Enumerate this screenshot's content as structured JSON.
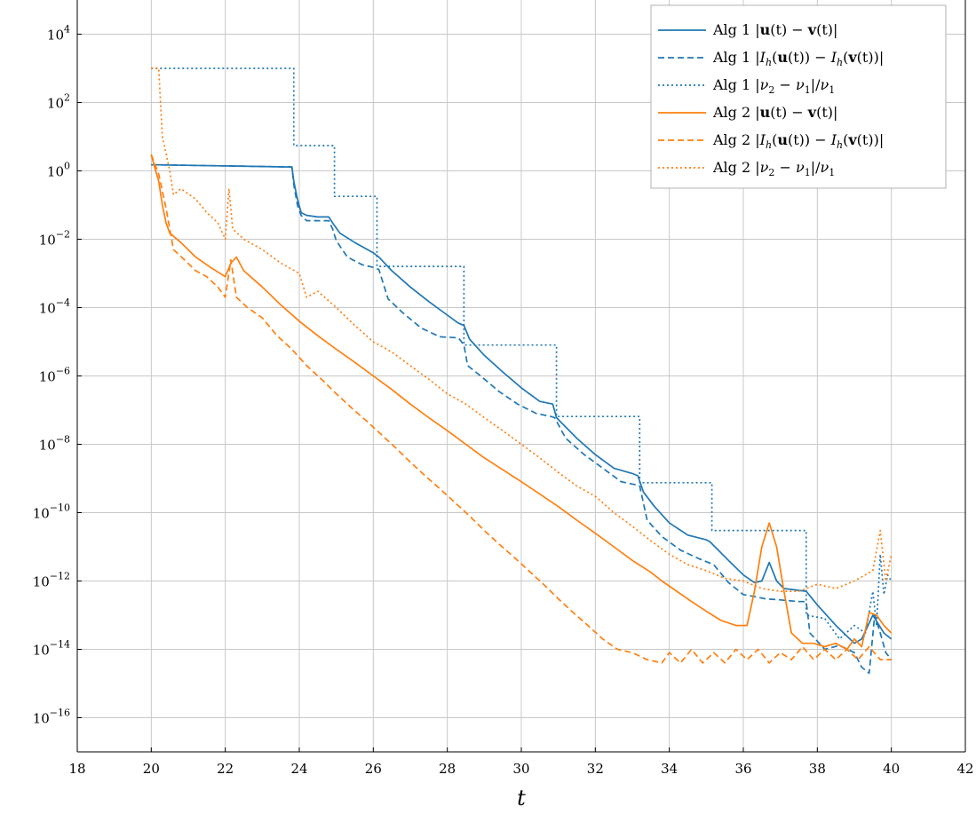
{
  "chart_data": {
    "type": "line",
    "xlabel": "t",
    "ylabel": "",
    "title": "",
    "xlim": [
      18,
      42
    ],
    "ylim": [
      1e-17,
      100000.0
    ],
    "yscale": "log",
    "grid": true,
    "legend_position": "top-right",
    "x_ticks": [
      18,
      20,
      22,
      24,
      26,
      28,
      30,
      32,
      34,
      36,
      38,
      40,
      42
    ],
    "y_ticks": [
      {
        "base": "10",
        "exp": "4",
        "value": 10000.0
      },
      {
        "base": "10",
        "exp": "2",
        "value": 100.0
      },
      {
        "base": "10",
        "exp": "0",
        "value": 1
      },
      {
        "base": "10",
        "exp": "−2",
        "value": 0.01
      },
      {
        "base": "10",
        "exp": "−4",
        "value": 0.0001
      },
      {
        "base": "10",
        "exp": "−6",
        "value": 1e-06
      },
      {
        "base": "10",
        "exp": "−8",
        "value": 1e-08
      },
      {
        "base": "10",
        "exp": "−10",
        "value": 1e-10
      },
      {
        "base": "10",
        "exp": "−12",
        "value": 1e-12
      },
      {
        "base": "10",
        "exp": "−14",
        "value": 1e-14
      },
      {
        "base": "10",
        "exp": "−16",
        "value": 1e-16
      }
    ],
    "colors": {
      "alg1": "#1f77b4",
      "alg2": "#ff7f0e"
    },
    "series": [
      {
        "name": "Alg 1 |u(t) − v(t)|",
        "legend": [
          "Alg 1 |",
          {
            "t": "u",
            "b": true
          },
          "(t) − ",
          {
            "t": "v",
            "b": true
          },
          "(t)|"
        ],
        "color": "alg1",
        "dash": "solid",
        "x": [
          20,
          20.2,
          23.8,
          23.85,
          23.95,
          24.05,
          24.2,
          24.5,
          24.8,
          24.9,
          25.1,
          25.5,
          26.0,
          26.15,
          26.5,
          27.0,
          27.5,
          28.0,
          28.3,
          28.45,
          28.6,
          29.0,
          29.5,
          30.0,
          30.5,
          30.85,
          30.95,
          31.5,
          32.0,
          32.5,
          33.0,
          33.15,
          33.3,
          33.6,
          34.0,
          34.5,
          35.0,
          35.1,
          35.6,
          36.0,
          36.3,
          36.5,
          36.7,
          36.9,
          37.1,
          37.4,
          37.7,
          38.0,
          38.5,
          39.0,
          39.2,
          39.5,
          39.8,
          40.0
        ],
        "y": [
          1.5,
          1.5,
          1.3,
          0.5,
          0.15,
          0.06,
          0.05,
          0.045,
          0.045,
          0.03,
          0.015,
          0.008,
          0.004,
          0.003,
          0.0012,
          0.0004,
          0.00015,
          6e-05,
          3.5e-05,
          3e-05,
          1.2e-05,
          4e-06,
          1.3e-06,
          4.5e-07,
          1.8e-07,
          1.5e-07,
          6e-08,
          1.5e-08,
          5e-09,
          2e-09,
          1.4e-09,
          1.2e-09,
          4e-10,
          1.5e-10,
          5e-11,
          2.2e-11,
          1.6e-11,
          1.4e-11,
          4e-12,
          1.5e-12,
          9e-13,
          1e-12,
          3.5e-12,
          1e-12,
          6e-13,
          5.5e-13,
          5e-13,
          2e-13,
          5e-14,
          1.5e-14,
          2e-14,
          1e-13,
          3e-14,
          2e-14
        ]
      },
      {
        "name": "Alg 1 |I_h(u(t)) − I_h(v(t))|",
        "legend": [
          "Alg 1 |",
          {
            "t": "I",
            "i": true
          },
          {
            "t": "h",
            "i": true,
            "sub": true
          },
          "(",
          {
            "t": "u",
            "b": true
          },
          "(t)) − ",
          {
            "t": "I",
            "i": true
          },
          {
            "t": "h",
            "i": true,
            "sub": true
          },
          "(",
          {
            "t": "v",
            "b": true
          },
          "(t))|"
        ],
        "color": "alg1",
        "dash": "dashed",
        "x": [
          20,
          20.2,
          23.8,
          23.85,
          23.95,
          24.05,
          24.2,
          24.8,
          24.9,
          25.0,
          25.3,
          25.7,
          26.0,
          26.15,
          26.4,
          26.8,
          27.3,
          27.8,
          28.3,
          28.45,
          28.55,
          28.9,
          29.4,
          29.9,
          30.4,
          30.8,
          30.9,
          31.2,
          31.7,
          32.2,
          32.7,
          33.1,
          33.2,
          33.4,
          33.8,
          34.3,
          34.8,
          35.2,
          35.6,
          36.0,
          36.3,
          36.6,
          37.0,
          37.5,
          37.7,
          37.8,
          38.2,
          38.6,
          39.0,
          39.2,
          39.4,
          39.55,
          39.7,
          39.85,
          40.0
        ],
        "y": [
          1.5,
          1.5,
          1.3,
          0.4,
          0.1,
          0.05,
          0.035,
          0.035,
          0.02,
          0.009,
          0.003,
          0.0018,
          0.0015,
          0.0013,
          0.00018,
          7e-05,
          2.5e-05,
          1.4e-05,
          1.3e-05,
          8e-06,
          2e-06,
          1e-06,
          3.5e-07,
          1.5e-07,
          8e-08,
          6.5e-08,
          6e-08,
          1.5e-08,
          5e-09,
          2e-09,
          8e-10,
          6.5e-10,
          6e-10,
          6e-11,
          2e-11,
          8e-12,
          4.5e-12,
          3e-12,
          9e-13,
          4e-13,
          3.5e-13,
          3e-13,
          2.8e-13,
          2.5e-13,
          2.5e-13,
          3e-14,
          1e-14,
          1.3e-14,
          8e-15,
          3e-15,
          2e-15,
          1e-13,
          3e-14,
          8e-15,
          5e-15
        ]
      },
      {
        "name": "Alg 1 |ν2 − ν1|/ν1",
        "legend": [
          "Alg 1 |",
          {
            "t": "ν",
            "i": true
          },
          {
            "t": "2",
            "sub": true
          },
          " − ",
          {
            "t": "ν",
            "i": true
          },
          {
            "t": "1",
            "sub": true
          },
          "|/",
          {
            "t": "ν",
            "i": true
          },
          {
            "t": "1",
            "sub": true
          }
        ],
        "color": "alg1",
        "dash": "dotted",
        "x": [
          20,
          23.85,
          23.85,
          24.95,
          24.95,
          26.1,
          26.1,
          28.45,
          28.45,
          30.95,
          30.95,
          33.2,
          33.2,
          35.15,
          35.15,
          37.7,
          37.7,
          38.2,
          38.6,
          39.0,
          39.3,
          39.5,
          39.6,
          39.7,
          39.8,
          39.9,
          40.0
        ],
        "y": [
          1000,
          1000,
          5.5,
          5.5,
          0.18,
          0.18,
          0.0016,
          0.0016,
          8e-06,
          8e-06,
          6.5e-08,
          6.5e-08,
          7.5e-10,
          7.5e-10,
          3e-11,
          3e-11,
          1e-13,
          8e-14,
          2e-14,
          5e-14,
          3e-14,
          5e-13,
          5e-14,
          6e-12,
          4e-13,
          1.5e-12,
          1e-12
        ]
      },
      {
        "name": "Alg 2 |u(t) − v(t)|",
        "legend": [
          "Alg 2 |",
          {
            "t": "u",
            "b": true
          },
          "(t) − ",
          {
            "t": "v",
            "b": true
          },
          "(t)|"
        ],
        "color": "alg2",
        "dash": "solid",
        "x": [
          20,
          20.1,
          20.2,
          20.3,
          20.4,
          20.5,
          20.8,
          21.2,
          21.6,
          22.0,
          22.15,
          22.3,
          22.5,
          23.0,
          23.5,
          24.0,
          24.5,
          25.0,
          25.5,
          26.0,
          26.5,
          27.0,
          27.5,
          28.0,
          28.5,
          29.0,
          29.5,
          30.0,
          30.5,
          31.0,
          31.5,
          32.0,
          32.5,
          33.0,
          33.5,
          33.8,
          34.2,
          34.6,
          35.0,
          35.4,
          35.8,
          36.1,
          36.3,
          36.5,
          36.7,
          36.9,
          37.1,
          37.3,
          37.6,
          37.9,
          38.2,
          38.5,
          38.8,
          39.0,
          39.2,
          39.4,
          39.6,
          39.8,
          40.0
        ],
        "y": [
          3,
          1.2,
          0.5,
          0.1,
          0.03,
          0.015,
          0.008,
          0.003,
          0.0015,
          0.0008,
          0.002,
          0.003,
          0.0012,
          0.0004,
          0.00012,
          4e-05,
          1.5e-05,
          6e-06,
          2.5e-06,
          1e-06,
          4e-07,
          1.5e-07,
          6e-08,
          2.5e-08,
          1e-08,
          4e-09,
          1.8e-09,
          8e-10,
          3.5e-10,
          1.5e-10,
          6e-11,
          2.5e-11,
          1e-11,
          4e-12,
          1.8e-12,
          1e-12,
          5e-13,
          2.5e-13,
          1.3e-13,
          7e-14,
          5e-14,
          5e-14,
          5e-13,
          1e-11,
          5e-11,
          1e-11,
          5e-13,
          3e-14,
          1.5e-14,
          1.5e-14,
          1.2e-14,
          1.5e-14,
          1e-14,
          2e-14,
          1.2e-14,
          1.2e-13,
          1e-13,
          5e-14,
          3e-14
        ]
      },
      {
        "name": "Alg 2 |I_h(u(t)) − I_h(v(t))|",
        "legend": [
          "Alg 2 |",
          {
            "t": "I",
            "i": true
          },
          {
            "t": "h",
            "i": true,
            "sub": true
          },
          "(",
          {
            "t": "u",
            "b": true
          },
          "(t)) − ",
          {
            "t": "I",
            "i": true
          },
          {
            "t": "h",
            "i": true,
            "sub": true
          },
          "(",
          {
            "t": "v",
            "b": true
          },
          "(t))|"
        ],
        "color": "alg2",
        "dash": "dashed",
        "x": [
          20,
          20.2,
          20.4,
          20.6,
          20.9,
          21.2,
          21.5,
          21.8,
          22.0,
          22.15,
          22.3,
          22.6,
          23.0,
          23.4,
          23.8,
          24.2,
          24.6,
          25.0,
          25.4,
          25.8,
          26.2,
          26.6,
          27.0,
          27.4,
          27.8,
          28.2,
          28.6,
          29.0,
          29.4,
          29.8,
          30.2,
          30.6,
          31.0,
          31.4,
          31.8,
          32.2,
          32.6,
          33.0,
          33.4,
          33.8,
          34.0,
          34.3,
          34.6,
          34.9,
          35.2,
          35.5,
          35.8,
          36.1,
          36.4,
          36.7,
          37.0,
          37.3,
          37.6,
          37.9,
          38.2,
          38.5,
          38.8,
          39.1,
          39.4,
          39.7,
          40.0
        ],
        "y": [
          3,
          0.8,
          0.08,
          0.005,
          0.0025,
          0.0012,
          0.0008,
          0.0004,
          0.0002,
          0.0025,
          0.0002,
          0.0001,
          5e-05,
          1.5e-05,
          6e-06,
          2e-06,
          8e-07,
          3e-07,
          1.2e-07,
          5e-08,
          2e-08,
          8e-09,
          3e-09,
          1.2e-09,
          5e-10,
          2e-10,
          8e-11,
          3e-11,
          1.2e-11,
          5e-12,
          2e-12,
          8e-13,
          3e-13,
          1.2e-13,
          5e-14,
          2e-14,
          1e-14,
          8e-15,
          5e-15,
          4e-15,
          8e-15,
          4e-15,
          1e-14,
          4e-15,
          8e-15,
          4e-15,
          1e-14,
          5e-15,
          1e-14,
          4e-15,
          8e-15,
          5e-15,
          1.2e-14,
          5e-15,
          1e-14,
          5e-15,
          1e-14,
          5e-15,
          1.2e-14,
          5e-15,
          5e-15
        ]
      },
      {
        "name": "Alg 2 |ν2 − ν1|/ν1",
        "legend": [
          "Alg 2 |",
          {
            "t": "ν",
            "i": true
          },
          {
            "t": "2",
            "sub": true
          },
          " − ",
          {
            "t": "ν",
            "i": true
          },
          {
            "t": "1",
            "sub": true
          },
          "|/",
          {
            "t": "ν",
            "i": true
          },
          {
            "t": "1",
            "sub": true
          }
        ],
        "color": "alg2",
        "dash": "dotted",
        "x": [
          20,
          20.2,
          20.3,
          20.5,
          20.6,
          20.8,
          21.2,
          21.5,
          21.8,
          22.0,
          22.1,
          22.2,
          22.5,
          23.0,
          23.5,
          24.0,
          24.2,
          24.5,
          25.0,
          25.5,
          26.0,
          26.5,
          27.0,
          27.5,
          28.0,
          28.5,
          29.0,
          29.5,
          30.0,
          30.5,
          31.0,
          31.5,
          32.0,
          32.5,
          33.0,
          33.5,
          34.0,
          34.5,
          35.0,
          35.5,
          36.0,
          36.5,
          37.0,
          37.5,
          38.0,
          38.5,
          39.0,
          39.5,
          39.7,
          39.85,
          40.0
        ],
        "y": [
          1000,
          1000,
          10,
          1,
          0.2,
          0.3,
          0.15,
          0.06,
          0.03,
          0.01,
          0.3,
          0.02,
          0.01,
          0.005,
          0.002,
          0.001,
          0.0002,
          0.0003,
          0.0001,
          3e-05,
          1e-05,
          5e-06,
          2e-06,
          8e-07,
          3e-07,
          1.5e-07,
          6e-08,
          2.5e-08,
          1e-08,
          4e-09,
          1.5e-09,
          6e-10,
          3e-10,
          1e-10,
          4e-11,
          1.5e-11,
          6e-12,
          3e-12,
          2e-12,
          1.2e-12,
          1e-12,
          6e-13,
          5e-13,
          5e-13,
          8e-13,
          6e-13,
          1e-12,
          2e-12,
          3e-11,
          1e-12,
          6e-12
        ]
      }
    ]
  }
}
